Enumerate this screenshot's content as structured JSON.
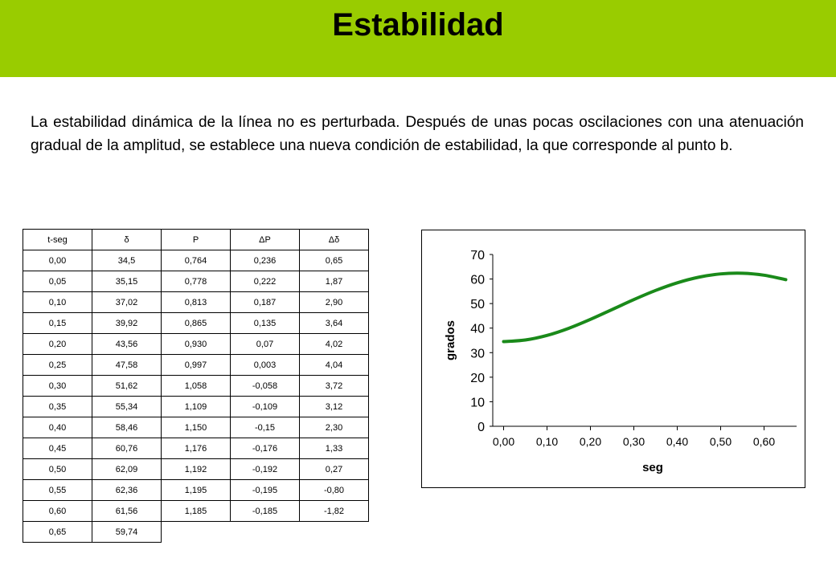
{
  "header": {
    "title": "Estabilidad",
    "banner_color": "#99cc00"
  },
  "body": {
    "paragraph": "La estabilidad dinámica de la línea no es perturbada. Después de unas pocas oscilaciones con una atenuación gradual de la amplitud, se establece una nueva condición de estabilidad, la que corresponde al punto b."
  },
  "table": {
    "headers": [
      "t-seg",
      "δ",
      "P",
      "ΔP",
      "Δδ"
    ],
    "rows": [
      [
        "0,00",
        "34,5",
        "0,764",
        "0,236",
        "0,65"
      ],
      [
        "0,05",
        "35,15",
        "0,778",
        "0,222",
        "1,87"
      ],
      [
        "0,10",
        "37,02",
        "0,813",
        "0,187",
        "2,90"
      ],
      [
        "0,15",
        "39,92",
        "0,865",
        "0,135",
        "3,64"
      ],
      [
        "0,20",
        "43,56",
        "0,930",
        "0,07",
        "4,02"
      ],
      [
        "0,25",
        "47,58",
        "0,997",
        "0,003",
        "4,04"
      ],
      [
        "0,30",
        "51,62",
        "1,058",
        "-0,058",
        "3,72"
      ],
      [
        "0,35",
        "55,34",
        "1,109",
        "-0,109",
        "3,12"
      ],
      [
        "0,40",
        "58,46",
        "1,150",
        "-0,15",
        "2,30"
      ],
      [
        "0,45",
        "60,76",
        "1,176",
        "-0,176",
        "1,33"
      ],
      [
        "0,50",
        "62,09",
        "1,192",
        "-0,192",
        "0,27"
      ],
      [
        "0,55",
        "62,36",
        "1,195",
        "-0,195",
        "-0,80"
      ],
      [
        "0,60",
        "61,56",
        "1,185",
        "-0,185",
        "-1,82"
      ],
      [
        "0,65",
        "59,74"
      ]
    ]
  },
  "chart_data": {
    "type": "line",
    "xlabel": "seg",
    "ylabel": "grados",
    "xlim": [
      -0.025,
      0.675
    ],
    "ylim": [
      0,
      70
    ],
    "xticks": [
      "0,00",
      "0,10",
      "0,20",
      "0,30",
      "0,40",
      "0,50",
      "0,60"
    ],
    "yticks": [
      "0",
      "10",
      "20",
      "30",
      "40",
      "50",
      "60",
      "70"
    ],
    "grid": false,
    "legend": "none",
    "line_color": "#1a8a1a",
    "x": [
      0.0,
      0.05,
      0.1,
      0.15,
      0.2,
      0.25,
      0.3,
      0.35,
      0.4,
      0.45,
      0.5,
      0.55,
      0.6,
      0.65
    ],
    "y": [
      34.5,
      35.15,
      37.02,
      39.92,
      43.56,
      47.58,
      51.62,
      55.34,
      58.46,
      60.76,
      62.09,
      62.36,
      61.56,
      59.74
    ]
  }
}
